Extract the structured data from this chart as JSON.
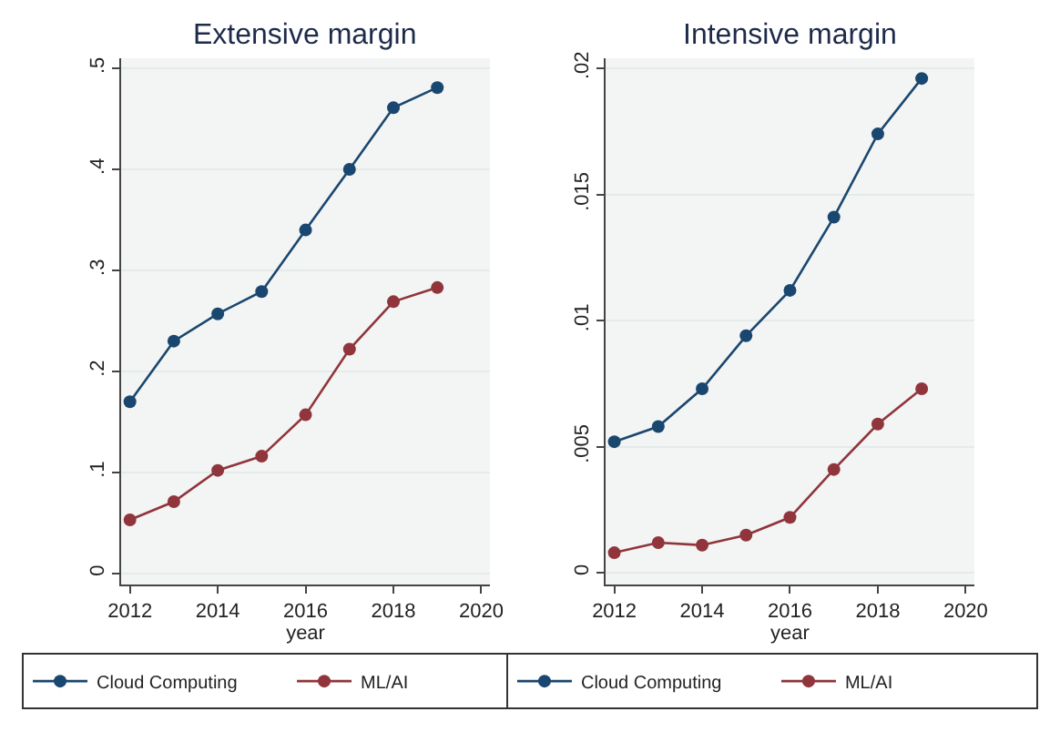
{
  "chart_data": [
    {
      "type": "line",
      "title": "Extensive margin",
      "xlabel": "year",
      "x": [
        2012,
        2013,
        2014,
        2015,
        2016,
        2017,
        2018,
        2019
      ],
      "series": [
        {
          "name": "Cloud Computing",
          "color": "#1a476f",
          "values": [
            0.17,
            0.23,
            0.257,
            0.279,
            0.34,
            0.4,
            0.461,
            0.481
          ]
        },
        {
          "name": "ML/AI",
          "color": "#90353b",
          "values": [
            0.053,
            0.071,
            0.102,
            0.116,
            0.157,
            0.222,
            0.269,
            0.283
          ]
        }
      ],
      "xlim": [
        2011.8,
        2020.2
      ],
      "xticks": [
        2012,
        2014,
        2016,
        2018,
        2020
      ],
      "ylim": [
        -0.011,
        0.51
      ],
      "yticks": [
        {
          "value": 0,
          "label": "0"
        },
        {
          "value": 0.1,
          "label": ".1"
        },
        {
          "value": 0.2,
          "label": ".2"
        },
        {
          "value": 0.3,
          "label": ".3"
        },
        {
          "value": 0.4,
          "label": ".4"
        },
        {
          "value": 0.5,
          "label": ".5"
        }
      ],
      "grid": "y",
      "legend": "bottom",
      "marker": "circle",
      "line_style": "solid"
    },
    {
      "type": "line",
      "title": "Intensive margin",
      "xlabel": "year",
      "x": [
        2012,
        2013,
        2014,
        2015,
        2016,
        2017,
        2018,
        2019
      ],
      "series": [
        {
          "name": "Cloud Computing",
          "color": "#1a476f",
          "values": [
            0.0052,
            0.0058,
            0.0073,
            0.0094,
            0.0112,
            0.0141,
            0.0174,
            0.0196
          ]
        },
        {
          "name": "ML/AI",
          "color": "#90353b",
          "values": [
            0.0008,
            0.0012,
            0.0011,
            0.0015,
            0.0022,
            0.0041,
            0.0059,
            0.0073
          ]
        }
      ],
      "xlim": [
        2011.8,
        2020.2
      ],
      "xticks": [
        2012,
        2014,
        2016,
        2018,
        2020
      ],
      "ylim": [
        -0.00046,
        0.0204
      ],
      "yticks": [
        {
          "value": 0,
          "label": "0"
        },
        {
          "value": 0.005,
          "label": ".005"
        },
        {
          "value": 0.01,
          "label": ".01"
        },
        {
          "value": 0.015,
          "label": ".015"
        },
        {
          "value": 0.02,
          "label": ".02"
        }
      ],
      "grid": "y",
      "legend": "bottom",
      "marker": "circle",
      "line_style": "solid"
    }
  ]
}
